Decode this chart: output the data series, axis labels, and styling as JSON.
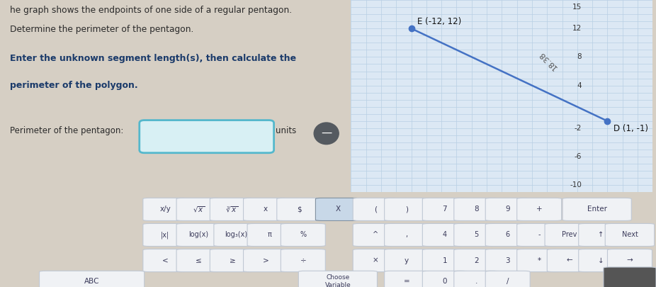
{
  "title_text1": "he graph shows the endpoints of one side of a regular pentagon.",
  "title_text2": "Determine the perimeter of the pentagon.",
  "instruction_bold": "Enter the unknown segment length(s), then calculate the",
  "instruction_bold2": "perimeter of the polygon.",
  "perimeter_label": "Perimeter of the pentagon:",
  "units_label": "units",
  "point_D": [
    1,
    -1
  ],
  "point_E": [
    -12,
    12
  ],
  "segment_label": "18.38",
  "point_color": "#4472C4",
  "line_color": "#4472C4",
  "grid_color": "#b8cfe4",
  "bg_left": "#d6cfc4",
  "bg_right": "#dce8f4",
  "xlim": [
    -16,
    4
  ],
  "ylim": [
    -11,
    16
  ],
  "ytick_positions": [
    -10,
    -6,
    -2,
    4,
    8,
    12,
    15
  ],
  "ytick_labels": [
    "-10",
    "-6",
    "-2",
    "4",
    "8",
    "12",
    "15"
  ],
  "keyboard_bg": "#d8dfe8",
  "button_bg": "#f0f2f5",
  "circle_color": "#555a60"
}
